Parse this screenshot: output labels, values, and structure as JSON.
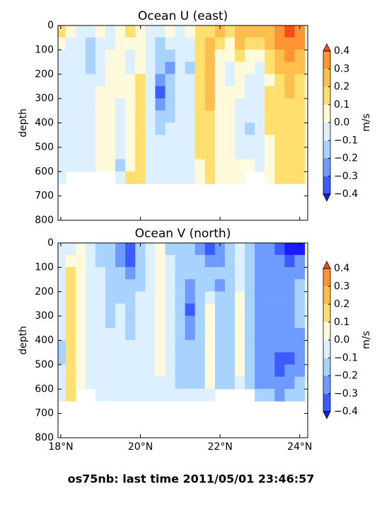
{
  "chart_data": [
    {
      "type": "contourf",
      "title": "Ocean U (east)",
      "ylabel": "depth",
      "colorbar_label": "m/s",
      "x": [
        18.0,
        18.25,
        18.5,
        18.75,
        19.0,
        19.25,
        19.5,
        19.75,
        20.0,
        20.25,
        20.5,
        20.75,
        21.0,
        21.25,
        21.5,
        21.75,
        22.0,
        22.25,
        22.5,
        22.75,
        23.0,
        23.25,
        23.5,
        23.75,
        24.0
      ],
      "y": [
        25,
        75,
        125,
        175,
        225,
        275,
        325,
        375,
        425,
        475,
        525,
        575,
        625
      ],
      "z": [
        [
          0.15,
          0.05,
          -0.05,
          -0.05,
          0.05,
          -0.05,
          0.05,
          0.15,
          0.05,
          -0.05,
          -0.05,
          0.05,
          -0.05,
          0.05,
          0.15,
          0.15,
          0.25,
          0.15,
          0.25,
          0.25,
          0.25,
          0.25,
          0.35,
          0.45,
          0.35
        ],
        [
          0.05,
          -0.05,
          -0.05,
          -0.15,
          -0.05,
          -0.05,
          0.05,
          0.05,
          0.05,
          -0.05,
          -0.15,
          -0.05,
          -0.05,
          -0.05,
          0.15,
          0.25,
          0.15,
          0.05,
          0.25,
          0.15,
          0.15,
          0.25,
          0.35,
          0.35,
          0.35
        ],
        [
          -0.05,
          -0.05,
          -0.05,
          -0.15,
          -0.05,
          0.05,
          0.05,
          -0.05,
          0.05,
          -0.05,
          -0.15,
          -0.15,
          -0.05,
          -0.05,
          0.15,
          0.25,
          0.05,
          0.05,
          0.15,
          0.05,
          0.05,
          0.15,
          0.25,
          0.35,
          0.25
        ],
        [
          -0.05,
          -0.05,
          -0.05,
          -0.15,
          -0.05,
          0.05,
          0.05,
          -0.05,
          0.05,
          -0.05,
          -0.15,
          -0.25,
          -0.05,
          -0.15,
          0.15,
          0.25,
          0.05,
          -0.05,
          0.05,
          0.05,
          -0.05,
          0.15,
          0.25,
          0.25,
          0.25
        ],
        [
          -0.05,
          -0.05,
          -0.05,
          -0.05,
          -0.05,
          0.05,
          0.05,
          0.05,
          0.15,
          -0.05,
          -0.25,
          -0.15,
          -0.05,
          -0.05,
          0.15,
          0.25,
          0.05,
          -0.05,
          0.05,
          -0.05,
          -0.05,
          0.05,
          0.15,
          0.25,
          0.15
        ],
        [
          -0.05,
          -0.05,
          -0.05,
          -0.05,
          0.05,
          0.05,
          0.05,
          0.05,
          0.15,
          -0.05,
          -0.35,
          -0.15,
          -0.05,
          -0.05,
          0.15,
          0.25,
          0.05,
          0.05,
          0.05,
          -0.05,
          -0.05,
          0.15,
          0.15,
          0.25,
          0.15
        ],
        [
          -0.05,
          -0.05,
          -0.05,
          -0.05,
          0.05,
          0.05,
          -0.05,
          0.05,
          0.15,
          -0.05,
          -0.25,
          -0.15,
          -0.05,
          -0.05,
          0.15,
          0.25,
          0.05,
          0.05,
          -0.05,
          -0.05,
          -0.05,
          0.15,
          0.15,
          0.15,
          0.15
        ],
        [
          -0.05,
          -0.05,
          -0.05,
          -0.05,
          0.05,
          0.05,
          -0.05,
          0.05,
          0.15,
          -0.05,
          -0.15,
          -0.15,
          -0.05,
          -0.05,
          0.15,
          0.15,
          0.05,
          0.05,
          -0.05,
          -0.05,
          -0.05,
          0.15,
          0.15,
          0.15,
          0.15
        ],
        [
          -0.05,
          -0.05,
          -0.05,
          -0.05,
          0.05,
          0.05,
          -0.05,
          0.05,
          0.15,
          -0.05,
          -0.15,
          -0.05,
          -0.05,
          -0.05,
          0.15,
          0.15,
          0.05,
          0.05,
          -0.05,
          -0.15,
          -0.05,
          0.15,
          0.15,
          0.15,
          0.15
        ],
        [
          -0.05,
          -0.05,
          -0.05,
          -0.05,
          0.05,
          0.05,
          -0.05,
          0.05,
          0.15,
          -0.05,
          -0.05,
          -0.05,
          -0.05,
          -0.05,
          0.15,
          0.15,
          0.05,
          0.05,
          -0.05,
          -0.05,
          -0.05,
          0.05,
          0.15,
          0.15,
          0.15
        ],
        [
          -0.05,
          -0.05,
          -0.05,
          -0.05,
          0.05,
          0.05,
          -0.05,
          0.05,
          0.15,
          -0.05,
          -0.05,
          -0.05,
          -0.05,
          -0.05,
          0.15,
          0.15,
          0.05,
          0.05,
          -0.05,
          -0.05,
          -0.05,
          0.05,
          0.15,
          0.15,
          0.15
        ],
        [
          -0.05,
          -0.05,
          -0.05,
          -0.05,
          0.05,
          0.05,
          -0.15,
          0.05,
          0.15,
          -0.05,
          -0.05,
          -0.05,
          -0.05,
          -0.05,
          0.05,
          0.15,
          0.05,
          0.05,
          0.05,
          0.05,
          -0.05,
          0.05,
          0.15,
          0.15,
          0.15
        ],
        [
          -0.05,
          null,
          null,
          null,
          null,
          null,
          -0.05,
          0.15,
          0.15,
          -0.05,
          -0.05,
          -0.05,
          -0.05,
          -0.05,
          0.05,
          0.15,
          0.05,
          0.05,
          0.05,
          null,
          null,
          0.05,
          0.15,
          0.15,
          0.15
        ]
      ],
      "xlim": [
        17.93,
        24.2
      ],
      "ylim": [
        800,
        0
      ],
      "xticks": [
        18,
        20,
        22,
        24
      ],
      "yticks": [
        0,
        100,
        200,
        300,
        400,
        500,
        600,
        700,
        800
      ],
      "colorbar_ticks": [
        {
          "value": -0.4,
          "label": "−0.4"
        },
        {
          "value": -0.3,
          "label": "−0.3"
        },
        {
          "value": -0.2,
          "label": "−0.2"
        },
        {
          "value": -0.1,
          "label": "−0.1"
        },
        {
          "value": 0,
          "label": "0.0"
        },
        0.1,
        0.2,
        0.3,
        0.4
      ],
      "colors": [
        "#1a1aff",
        "#3d5cff",
        "#6f9bff",
        "#a8d2ff",
        "#dcf0ff",
        "#fffadc",
        "#ffdf6e",
        "#ffbf4d",
        "#ff9433",
        "#ff4c14"
      ]
    },
    {
      "type": "contourf",
      "title": "Ocean V (north)",
      "ylabel": "depth",
      "colorbar_label": "m/s",
      "x": [
        18.0,
        18.25,
        18.5,
        18.75,
        19.0,
        19.25,
        19.5,
        19.75,
        20.0,
        20.25,
        20.5,
        20.75,
        21.0,
        21.25,
        21.5,
        21.75,
        22.0,
        22.25,
        22.5,
        22.75,
        23.0,
        23.25,
        23.5,
        23.75,
        24.0
      ],
      "y": [
        25,
        75,
        125,
        175,
        225,
        275,
        325,
        375,
        425,
        475,
        525,
        575,
        625
      ],
      "z": [
        [
          -0.05,
          -0.05,
          0.05,
          -0.05,
          -0.15,
          -0.15,
          -0.25,
          -0.35,
          -0.15,
          -0.05,
          0.05,
          -0.15,
          -0.15,
          -0.15,
          -0.25,
          -0.35,
          -0.25,
          -0.15,
          -0.05,
          -0.15,
          -0.25,
          -0.25,
          -0.35,
          -0.45,
          -0.45
        ],
        [
          -0.05,
          0.05,
          0.05,
          -0.05,
          -0.15,
          -0.15,
          -0.25,
          -0.35,
          -0.15,
          -0.05,
          0.05,
          -0.05,
          -0.15,
          -0.15,
          -0.15,
          -0.25,
          -0.25,
          -0.15,
          -0.05,
          -0.15,
          -0.25,
          -0.25,
          -0.25,
          -0.35,
          -0.25
        ],
        [
          -0.05,
          0.15,
          0.05,
          -0.05,
          -0.05,
          -0.15,
          -0.15,
          -0.25,
          -0.15,
          -0.05,
          0.05,
          -0.05,
          -0.15,
          -0.15,
          -0.15,
          -0.15,
          -0.15,
          -0.15,
          -0.05,
          -0.15,
          -0.25,
          -0.25,
          -0.25,
          -0.25,
          -0.25
        ],
        [
          -0.05,
          0.15,
          0.05,
          -0.05,
          -0.05,
          -0.15,
          -0.15,
          -0.15,
          -0.15,
          -0.05,
          0.05,
          -0.05,
          -0.15,
          -0.25,
          -0.15,
          -0.15,
          -0.25,
          -0.15,
          -0.05,
          -0.15,
          -0.25,
          -0.25,
          -0.25,
          -0.25,
          -0.15
        ],
        [
          -0.05,
          0.15,
          0.05,
          -0.05,
          -0.05,
          -0.15,
          -0.15,
          -0.15,
          -0.05,
          -0.05,
          0.05,
          -0.05,
          -0.15,
          -0.25,
          -0.15,
          -0.05,
          -0.15,
          -0.15,
          0.05,
          -0.15,
          -0.25,
          -0.25,
          -0.25,
          -0.25,
          -0.15
        ],
        [
          -0.05,
          0.15,
          0.05,
          -0.05,
          -0.05,
          -0.15,
          -0.05,
          -0.15,
          -0.05,
          -0.05,
          0.05,
          -0.05,
          -0.15,
          -0.35,
          -0.15,
          0.05,
          -0.15,
          -0.15,
          0.05,
          -0.15,
          -0.25,
          -0.25,
          -0.25,
          -0.25,
          -0.15
        ],
        [
          -0.05,
          0.15,
          0.05,
          -0.05,
          -0.05,
          -0.15,
          -0.05,
          -0.15,
          -0.05,
          -0.05,
          0.05,
          -0.05,
          -0.15,
          -0.25,
          -0.15,
          0.05,
          -0.15,
          -0.15,
          0.05,
          -0.15,
          -0.25,
          -0.25,
          -0.25,
          -0.25,
          -0.15
        ],
        [
          -0.05,
          0.15,
          0.05,
          -0.05,
          -0.05,
          -0.05,
          -0.05,
          -0.15,
          -0.05,
          -0.05,
          0.05,
          -0.05,
          -0.15,
          -0.25,
          -0.15,
          0.05,
          -0.15,
          -0.15,
          0.05,
          -0.15,
          -0.25,
          -0.25,
          -0.25,
          -0.25,
          -0.25
        ],
        [
          -0.15,
          0.15,
          0.05,
          -0.05,
          -0.05,
          -0.05,
          -0.05,
          -0.05,
          -0.05,
          -0.05,
          0.05,
          -0.05,
          -0.15,
          -0.15,
          -0.15,
          0.05,
          -0.15,
          -0.15,
          0.05,
          -0.15,
          -0.25,
          -0.25,
          -0.25,
          -0.25,
          -0.25
        ],
        [
          -0.15,
          0.15,
          0.05,
          -0.05,
          -0.05,
          -0.05,
          -0.05,
          -0.05,
          -0.05,
          -0.05,
          0.05,
          -0.05,
          -0.15,
          -0.15,
          -0.15,
          0.05,
          -0.15,
          -0.15,
          0.05,
          -0.15,
          -0.25,
          -0.25,
          -0.35,
          -0.35,
          -0.25
        ],
        [
          -0.05,
          0.15,
          0.05,
          -0.05,
          -0.05,
          -0.05,
          -0.05,
          -0.05,
          -0.05,
          -0.05,
          0.05,
          -0.05,
          -0.15,
          -0.15,
          -0.15,
          0.05,
          -0.15,
          -0.15,
          0.05,
          -0.15,
          -0.25,
          -0.25,
          -0.35,
          -0.25,
          -0.25
        ],
        [
          -0.05,
          0.15,
          0.05,
          -0.05,
          -0.05,
          -0.05,
          -0.05,
          -0.05,
          -0.05,
          -0.05,
          -0.05,
          -0.05,
          -0.15,
          -0.15,
          -0.15,
          0.05,
          -0.15,
          -0.15,
          -0.05,
          -0.15,
          -0.25,
          -0.25,
          -0.25,
          -0.25,
          -0.15
        ],
        [
          -0.05,
          0.15,
          null,
          null,
          -0.05,
          -0.05,
          -0.05,
          -0.05,
          -0.05,
          -0.05,
          -0.05,
          -0.05,
          -0.05,
          -0.05,
          -0.05,
          -0.05,
          null,
          null,
          null,
          null,
          -0.15,
          -0.15,
          -0.25,
          -0.15,
          -0.15
        ]
      ],
      "xlim": [
        17.93,
        24.2
      ],
      "ylim": [
        800,
        0
      ],
      "xticks": [
        {
          "value": 18,
          "label": "18°N"
        },
        {
          "value": 20,
          "label": "20°N"
        },
        {
          "value": 22,
          "label": "22°N"
        },
        {
          "value": 24,
          "label": "24°N"
        }
      ],
      "yticks": [
        0,
        100,
        200,
        300,
        400,
        500,
        600,
        700,
        800
      ],
      "colorbar_ticks": [
        {
          "value": -0.4,
          "label": "−0.4"
        },
        {
          "value": -0.3,
          "label": "−0.3"
        },
        {
          "value": -0.2,
          "label": "−0.2"
        },
        {
          "value": -0.1,
          "label": "−0.1"
        },
        {
          "value": 0,
          "label": "0.0"
        },
        0.1,
        0.2,
        0.3,
        0.4
      ],
      "colors": [
        "#1a1aff",
        "#3d5cff",
        "#6f9bff",
        "#a8d2ff",
        "#dcf0ff",
        "#fffadc",
        "#ffdf6e",
        "#ffbf4d",
        "#ff9433",
        "#ff4c14"
      ]
    }
  ],
  "footer": "os75nb: last time 2011/05/01 23:46:57"
}
